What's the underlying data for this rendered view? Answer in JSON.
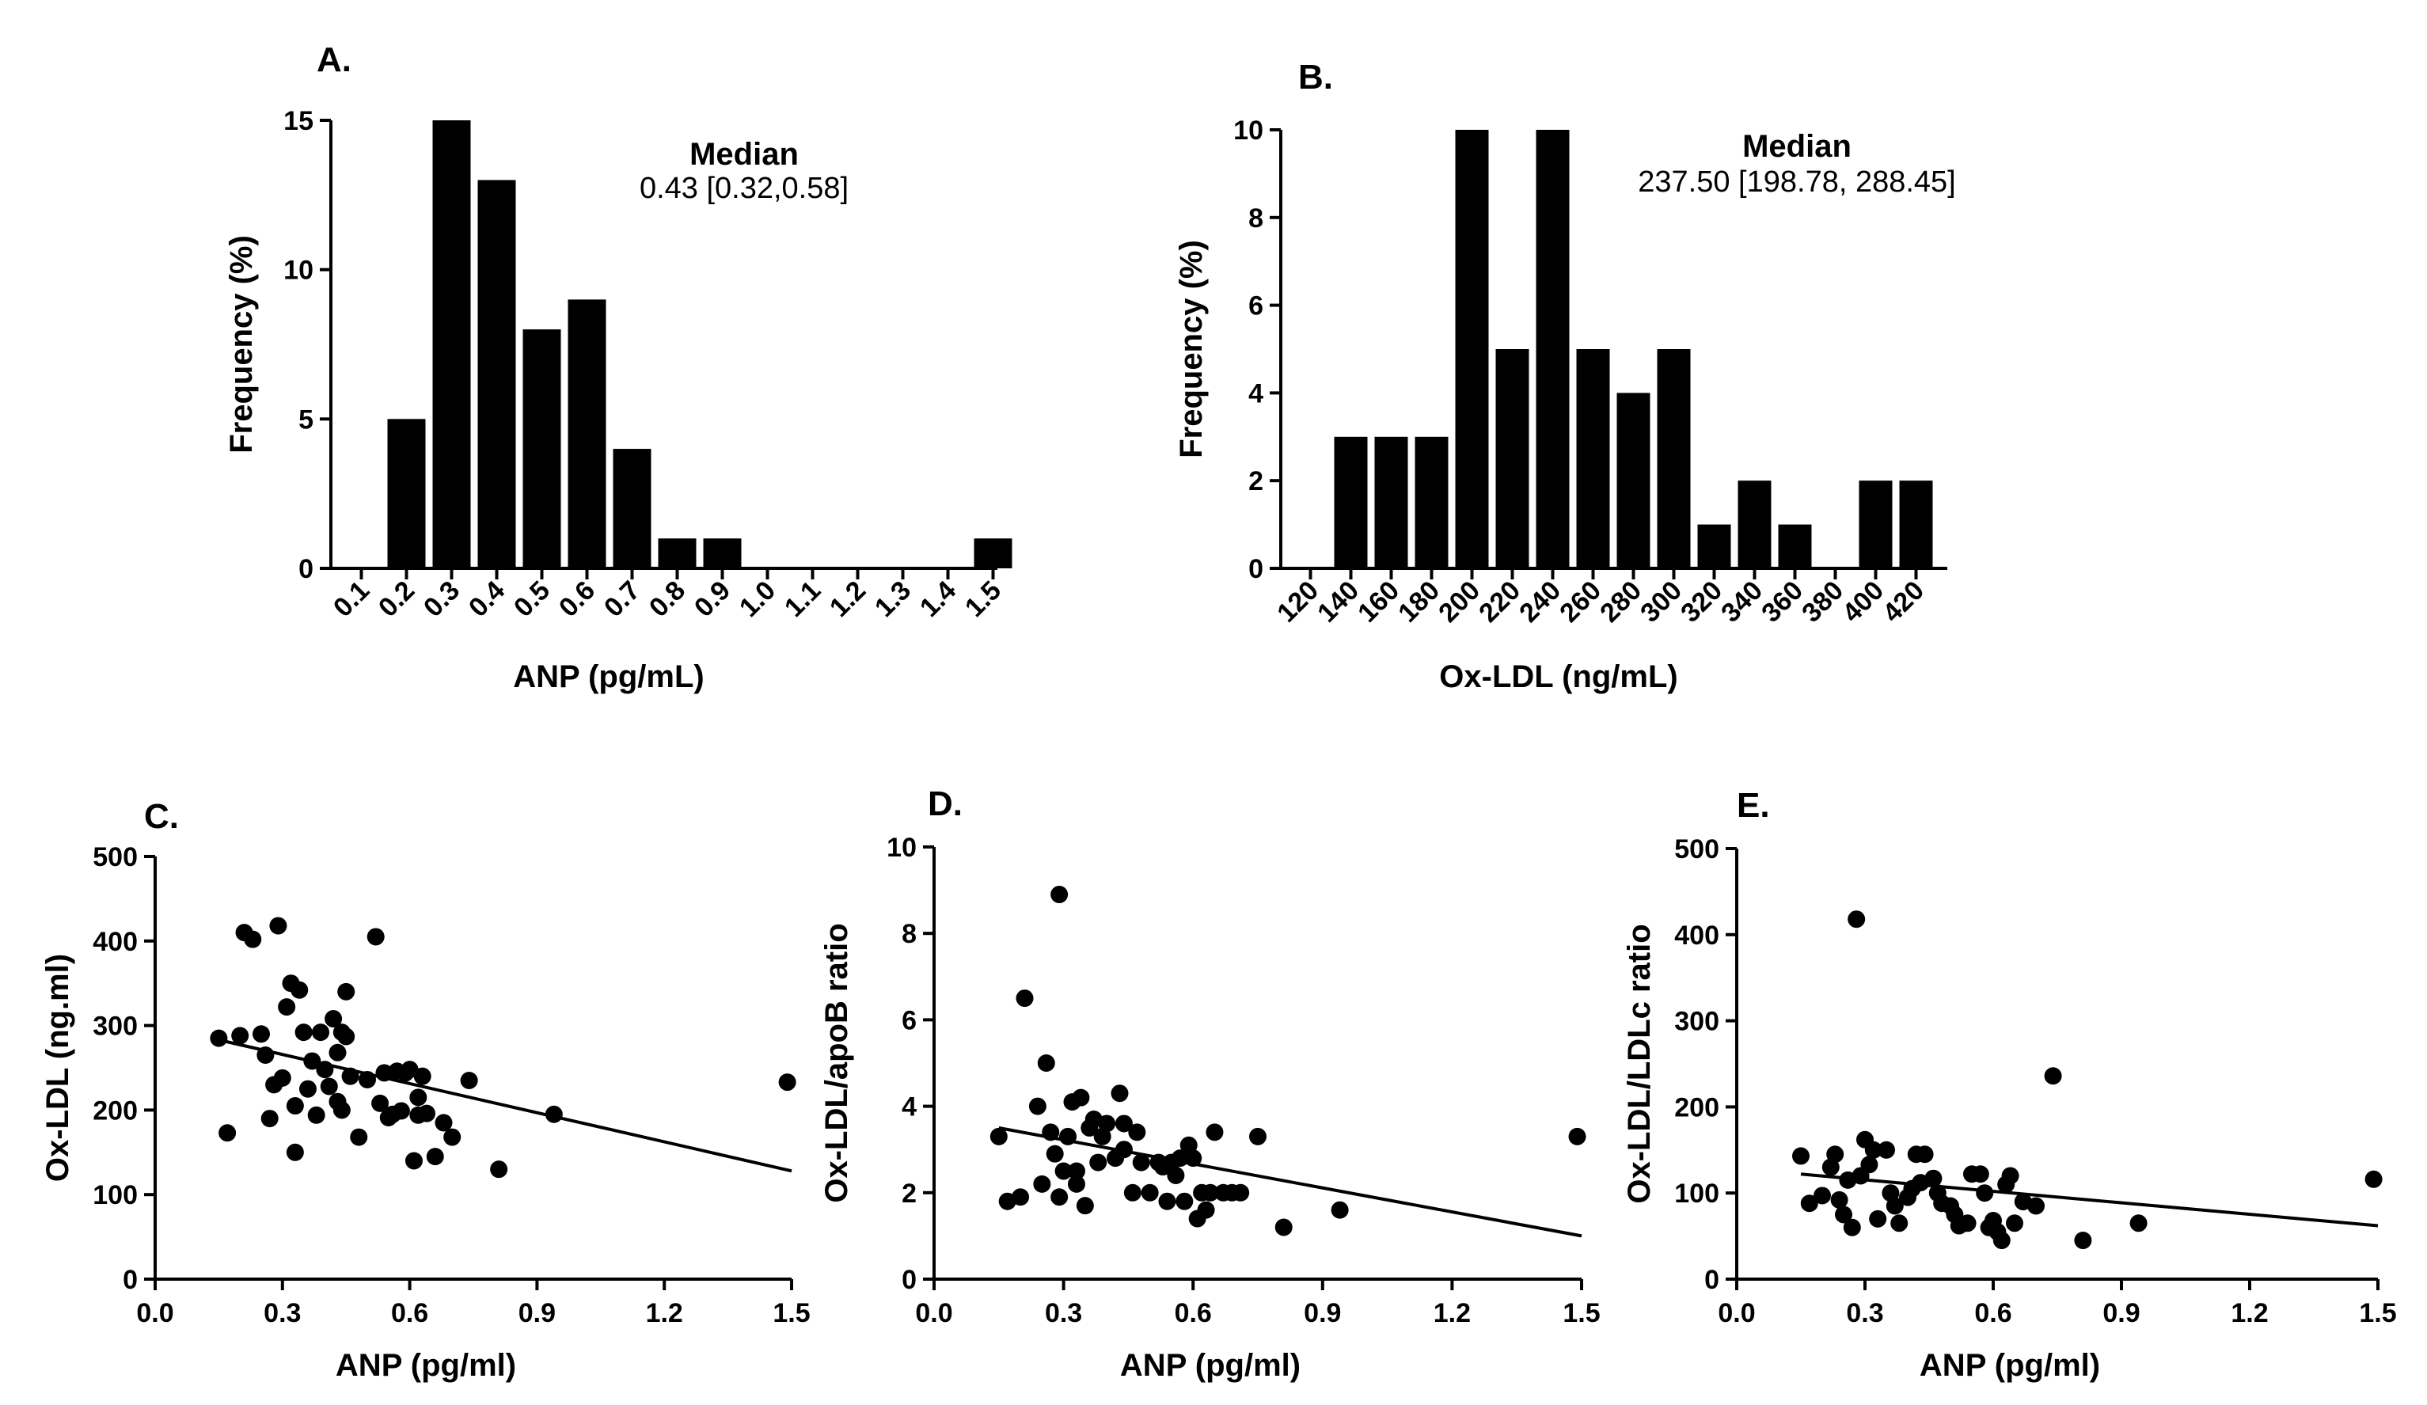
{
  "chart_data": [
    {
      "id": "A",
      "type": "bar",
      "panel_label": "A.",
      "title": "",
      "xlabel": "ANP (pg/mL)",
      "ylabel": "Frequency (%)",
      "categories": [
        "0.1",
        "0.2",
        "0.3",
        "0.4",
        "0.5",
        "0.6",
        "0.7",
        "0.8",
        "0.9",
        "1.0",
        "1.1",
        "1.2",
        "1.3",
        "1.4",
        "1.5"
      ],
      "values": [
        0,
        5,
        15,
        13,
        8,
        9,
        4,
        1,
        1,
        0,
        0,
        0,
        0,
        0,
        1
      ],
      "ylim": [
        0,
        15
      ],
      "yticks": [
        0,
        5,
        10,
        15
      ],
      "annotation": {
        "title": "Median",
        "text": "0.43 [0.32,0.58]"
      }
    },
    {
      "id": "B",
      "type": "bar",
      "panel_label": "B.",
      "title": "",
      "xlabel": "Ox-LDL (ng/mL)",
      "ylabel": "Frequency (%)",
      "categories": [
        "120",
        "140",
        "160",
        "180",
        "200",
        "220",
        "240",
        "260",
        "280",
        "300",
        "320",
        "340",
        "360",
        "380",
        "400",
        "420"
      ],
      "values": [
        0,
        3,
        3,
        3,
        10,
        5,
        10,
        5,
        4,
        5,
        1,
        2,
        1,
        0,
        2,
        2
      ],
      "ylim": [
        0,
        10
      ],
      "yticks": [
        0,
        2,
        4,
        6,
        8,
        10
      ],
      "annotation": {
        "title": "Median",
        "text": "237.50 [198.78, 288.45]"
      }
    },
    {
      "id": "C",
      "type": "scatter",
      "panel_label": "C.",
      "xlabel": "ANP (pg/ml)",
      "ylabel": "Ox-LDL (ng.ml)",
      "xlim": [
        0,
        1.5
      ],
      "ylim": [
        0,
        500
      ],
      "xticks": [
        "0.0",
        "0.3",
        "0.6",
        "0.9",
        "1.2",
        "1.5"
      ],
      "yticks": [
        "0",
        "100",
        "200",
        "300",
        "400",
        "500"
      ],
      "points": [
        [
          0.15,
          285
        ],
        [
          0.17,
          173
        ],
        [
          0.2,
          288
        ],
        [
          0.21,
          410
        ],
        [
          0.23,
          402
        ],
        [
          0.25,
          290
        ],
        [
          0.26,
          265
        ],
        [
          0.27,
          190
        ],
        [
          0.28,
          230
        ],
        [
          0.29,
          418
        ],
        [
          0.3,
          238
        ],
        [
          0.31,
          322
        ],
        [
          0.32,
          350
        ],
        [
          0.33,
          205
        ],
        [
          0.33,
          150
        ],
        [
          0.34,
          342
        ],
        [
          0.35,
          292
        ],
        [
          0.36,
          225
        ],
        [
          0.37,
          258
        ],
        [
          0.38,
          194
        ],
        [
          0.39,
          292
        ],
        [
          0.4,
          248
        ],
        [
          0.41,
          228
        ],
        [
          0.42,
          308
        ],
        [
          0.43,
          210
        ],
        [
          0.43,
          268
        ],
        [
          0.44,
          200
        ],
        [
          0.44,
          292
        ],
        [
          0.45,
          287
        ],
        [
          0.45,
          340
        ],
        [
          0.46,
          240
        ],
        [
          0.48,
          168
        ],
        [
          0.5,
          236
        ],
        [
          0.52,
          405
        ],
        [
          0.53,
          208
        ],
        [
          0.54,
          244
        ],
        [
          0.55,
          191
        ],
        [
          0.56,
          195
        ],
        [
          0.57,
          246
        ],
        [
          0.58,
          199
        ],
        [
          0.59,
          244
        ],
        [
          0.6,
          248
        ],
        [
          0.61,
          140
        ],
        [
          0.62,
          194
        ],
        [
          0.62,
          215
        ],
        [
          0.63,
          240
        ],
        [
          0.64,
          196
        ],
        [
          0.66,
          145
        ],
        [
          0.68,
          185
        ],
        [
          0.7,
          168
        ],
        [
          0.74,
          235
        ],
        [
          0.81,
          130
        ],
        [
          0.94,
          195
        ],
        [
          1.49,
          233
        ]
      ],
      "fit_line": {
        "x": [
          0.15,
          1.5
        ],
        "y": [
          283,
          128
        ]
      }
    },
    {
      "id": "D",
      "type": "scatter",
      "panel_label": "D.",
      "xlabel": "ANP (pg/ml)",
      "ylabel": "Ox-LDL/apoB ratio",
      "xlim": [
        0,
        1.5
      ],
      "ylim": [
        0,
        10
      ],
      "xticks": [
        "0.0",
        "0.3",
        "0.6",
        "0.9",
        "1.2",
        "1.5"
      ],
      "yticks": [
        "0",
        "2",
        "4",
        "6",
        "8",
        "10"
      ],
      "points": [
        [
          0.15,
          3.3
        ],
        [
          0.17,
          1.8
        ],
        [
          0.2,
          1.9
        ],
        [
          0.21,
          6.5
        ],
        [
          0.24,
          4.0
        ],
        [
          0.25,
          2.2
        ],
        [
          0.26,
          5.0
        ],
        [
          0.27,
          3.4
        ],
        [
          0.28,
          2.9
        ],
        [
          0.29,
          8.9
        ],
        [
          0.29,
          1.9
        ],
        [
          0.3,
          2.5
        ],
        [
          0.31,
          3.3
        ],
        [
          0.32,
          4.1
        ],
        [
          0.33,
          2.2
        ],
        [
          0.33,
          2.5
        ],
        [
          0.34,
          4.2
        ],
        [
          0.35,
          1.7
        ],
        [
          0.36,
          3.5
        ],
        [
          0.37,
          3.7
        ],
        [
          0.38,
          2.7
        ],
        [
          0.39,
          3.3
        ],
        [
          0.4,
          3.6
        ],
        [
          0.42,
          2.8
        ],
        [
          0.43,
          4.3
        ],
        [
          0.44,
          3.0
        ],
        [
          0.44,
          3.6
        ],
        [
          0.46,
          2.0
        ],
        [
          0.47,
          3.4
        ],
        [
          0.48,
          2.7
        ],
        [
          0.5,
          2.0
        ],
        [
          0.52,
          2.7
        ],
        [
          0.53,
          2.6
        ],
        [
          0.54,
          1.8
        ],
        [
          0.55,
          2.7
        ],
        [
          0.56,
          2.4
        ],
        [
          0.57,
          2.8
        ],
        [
          0.58,
          1.8
        ],
        [
          0.59,
          3.1
        ],
        [
          0.6,
          2.8
        ],
        [
          0.61,
          1.4
        ],
        [
          0.62,
          2.0
        ],
        [
          0.63,
          1.6
        ],
        [
          0.64,
          2.0
        ],
        [
          0.65,
          3.4
        ],
        [
          0.67,
          2.0
        ],
        [
          0.69,
          2.0
        ],
        [
          0.71,
          2.0
        ],
        [
          0.75,
          3.3
        ],
        [
          0.81,
          1.2
        ],
        [
          0.94,
          1.6
        ],
        [
          1.49,
          3.3
        ]
      ],
      "fit_line": {
        "x": [
          0.15,
          1.5
        ],
        "y": [
          3.5,
          1.0
        ]
      }
    },
    {
      "id": "E",
      "type": "scatter",
      "panel_label": "E.",
      "xlabel": "ANP (pg/ml)",
      "ylabel": "Ox-LDL/LDLc ratio",
      "xlim": [
        0,
        1.5
      ],
      "ylim": [
        0,
        500
      ],
      "xticks": [
        "0.0",
        "0.3",
        "0.6",
        "0.9",
        "1.2",
        "1.5"
      ],
      "yticks": [
        "0",
        "100",
        "200",
        "300",
        "400",
        "500"
      ],
      "points": [
        [
          0.15,
          143
        ],
        [
          0.17,
          88
        ],
        [
          0.2,
          97
        ],
        [
          0.22,
          130
        ],
        [
          0.23,
          145
        ],
        [
          0.24,
          92
        ],
        [
          0.25,
          75
        ],
        [
          0.26,
          115
        ],
        [
          0.27,
          60
        ],
        [
          0.28,
          418
        ],
        [
          0.29,
          120
        ],
        [
          0.3,
          162
        ],
        [
          0.31,
          133
        ],
        [
          0.32,
          150
        ],
        [
          0.33,
          70
        ],
        [
          0.35,
          150
        ],
        [
          0.36,
          100
        ],
        [
          0.37,
          85
        ],
        [
          0.38,
          65
        ],
        [
          0.4,
          95
        ],
        [
          0.41,
          105
        ],
        [
          0.42,
          145
        ],
        [
          0.43,
          112
        ],
        [
          0.44,
          145
        ],
        [
          0.46,
          117
        ],
        [
          0.47,
          100
        ],
        [
          0.48,
          88
        ],
        [
          0.5,
          85
        ],
        [
          0.51,
          75
        ],
        [
          0.52,
          62
        ],
        [
          0.54,
          65
        ],
        [
          0.55,
          122
        ],
        [
          0.57,
          122
        ],
        [
          0.58,
          100
        ],
        [
          0.59,
          60
        ],
        [
          0.6,
          68
        ],
        [
          0.61,
          55
        ],
        [
          0.62,
          45
        ],
        [
          0.63,
          110
        ],
        [
          0.64,
          120
        ],
        [
          0.65,
          65
        ],
        [
          0.67,
          90
        ],
        [
          0.7,
          85
        ],
        [
          0.74,
          236
        ],
        [
          0.81,
          45
        ],
        [
          0.94,
          65
        ],
        [
          1.49,
          116
        ]
      ],
      "fit_line": {
        "x": [
          0.15,
          1.5
        ],
        "y": [
          122,
          62
        ]
      }
    }
  ]
}
